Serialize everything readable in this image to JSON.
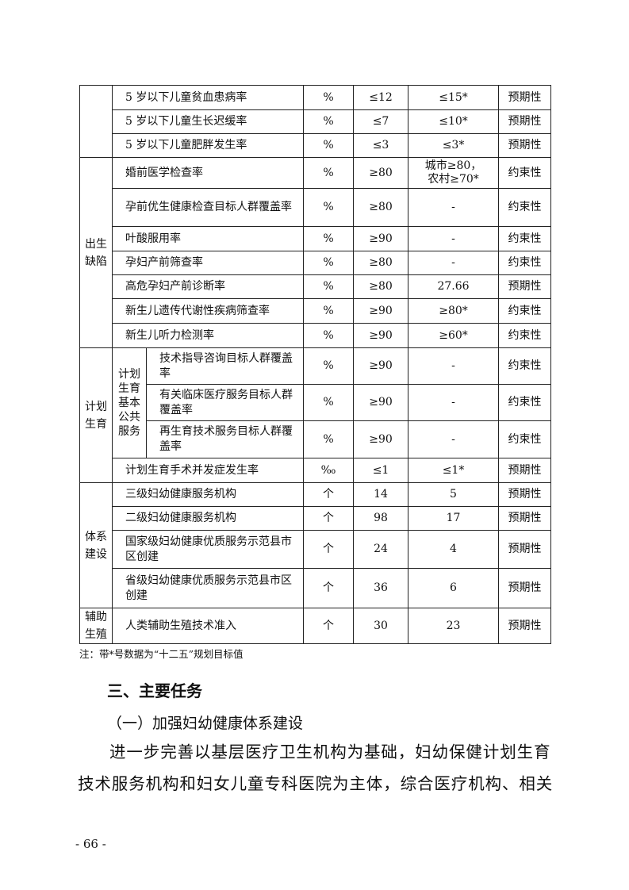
{
  "table": {
    "groups": [
      {
        "label": "",
        "rows": [
          {
            "indicator": "5 岁以下儿童贫血患病率",
            "unit": "%",
            "target": "≤12",
            "baseline": "≤15*",
            "nature": "预期性"
          },
          {
            "indicator": "5 岁以下儿童生长迟缓率",
            "unit": "%",
            "target": "≤7",
            "baseline": "≤10*",
            "nature": "预期性"
          },
          {
            "indicator": "5 岁以下儿童肥胖发生率",
            "unit": "%",
            "target": "≤3",
            "baseline": "≤3*",
            "nature": "预期性"
          }
        ]
      },
      {
        "label": "出生缺陷",
        "rows": [
          {
            "indicator": "婚前医学检查率",
            "unit": "%",
            "target": "≥80",
            "baseline": "城市≥80，\n农村≥70*",
            "nature": "约束性"
          },
          {
            "indicator": "孕前优生健康检查目标人群覆盖率",
            "unit": "%",
            "target": "≥80",
            "baseline": "-",
            "nature": "约束性"
          },
          {
            "indicator": "叶酸服用率",
            "unit": "%",
            "target": "≥90",
            "baseline": "-",
            "nature": "约束性"
          },
          {
            "indicator": "孕妇产前筛查率",
            "unit": "%",
            "target": "≥80",
            "baseline": "-",
            "nature": "约束性"
          },
          {
            "indicator": "高危孕妇产前诊断率",
            "unit": "%",
            "target": "≥80",
            "baseline": "27.66",
            "nature": "预期性"
          },
          {
            "indicator": "新生儿遗传代谢性疾病筛查率",
            "unit": "%",
            "target": "≥90",
            "baseline": "≥80*",
            "nature": "约束性"
          },
          {
            "indicator": "新生儿听力检测率",
            "unit": "%",
            "target": "≥90",
            "baseline": "≥60*",
            "nature": "约束性"
          }
        ]
      },
      {
        "label": "计划生育",
        "subgroup": "计划生育基本公共服务",
        "subgroup_rows": 3,
        "rows": [
          {
            "indicator": "技术指导咨询目标人群覆盖率",
            "unit": "%",
            "target": "≥90",
            "baseline": "-",
            "nature": "约束性"
          },
          {
            "indicator": "有关临床医疗服务目标人群覆盖率",
            "unit": "%",
            "target": "≥90",
            "baseline": "-",
            "nature": "约束性"
          },
          {
            "indicator": "再生育技术服务目标人群覆盖率",
            "unit": "%",
            "target": "≥90",
            "baseline": "-",
            "nature": "约束性"
          },
          {
            "indicator": "计划生育手术并发症发生率",
            "unit": "‰",
            "target": "≤1",
            "baseline": "≤1*",
            "nature": "预期性"
          }
        ]
      },
      {
        "label": "体系建设",
        "rows": [
          {
            "indicator": "三级妇幼健康服务机构",
            "unit": "个",
            "target": "14",
            "baseline": "5",
            "nature": "预期性"
          },
          {
            "indicator": "二级妇幼健康服务机构",
            "unit": "个",
            "target": "98",
            "baseline": "17",
            "nature": "预期性"
          },
          {
            "indicator": "国家级妇幼健康优质服务示范县市区创建",
            "unit": "个",
            "target": "24",
            "baseline": "4",
            "nature": "预期性"
          },
          {
            "indicator": "省级妇幼健康优质服务示范县市区创建",
            "unit": "个",
            "target": "36",
            "baseline": "6",
            "nature": "预期性"
          }
        ]
      },
      {
        "label": "辅助生殖",
        "rows": [
          {
            "indicator": "人类辅助生殖技术准入",
            "unit": "个",
            "target": "30",
            "baseline": "23",
            "nature": "预期性"
          }
        ]
      }
    ]
  },
  "note": "注：带*号数据为“十二五”规划目标值",
  "section_heading": "三、主要任务",
  "subsection_heading": "（一）加强妇幼健康体系建设",
  "paragraph": "进一步完善以基层医疗卫生机构为基础，妇幼保健计划生育技术服务机构和妇女儿童专科医院为主体，综合医疗机构、相关",
  "page_number": "- 66 -"
}
